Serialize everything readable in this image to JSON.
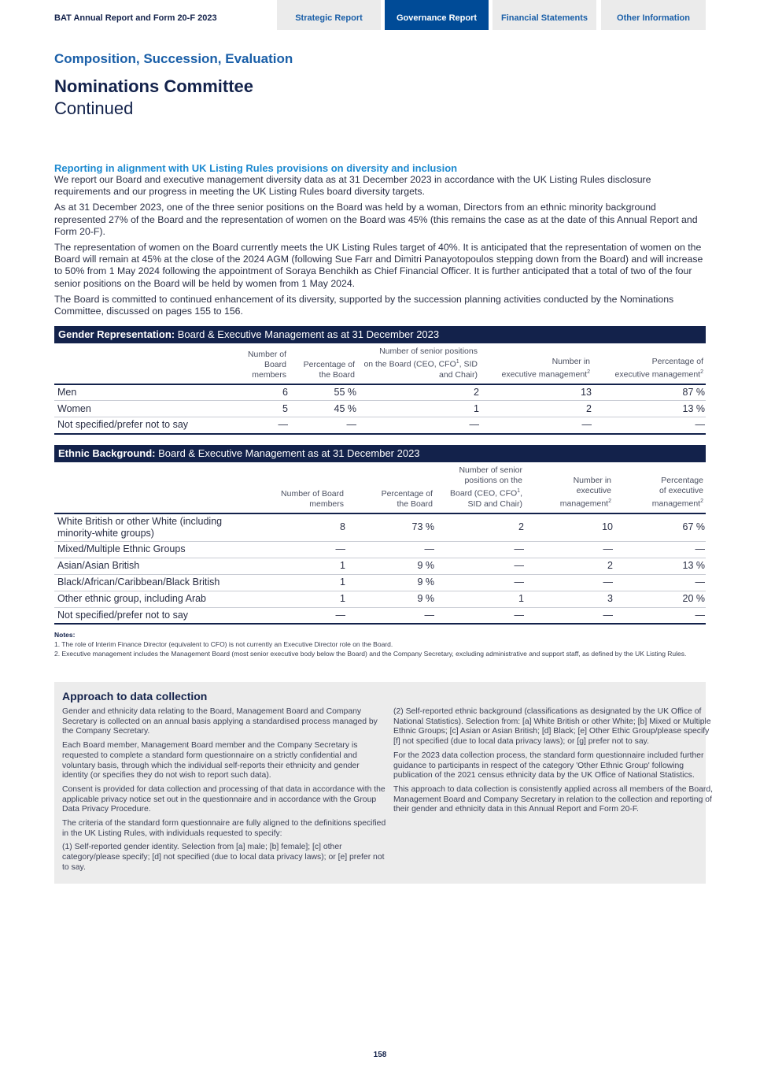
{
  "header": {
    "doc_title": "BAT Annual Report and Form 20-F 2023",
    "tabs": [
      {
        "label": "Strategic Report",
        "active": false
      },
      {
        "label": "Governance Report",
        "active": true
      },
      {
        "label": "Financial Statements",
        "active": false
      },
      {
        "label": "Other Information",
        "active": false
      }
    ]
  },
  "section": {
    "kicker": "Composition, Succession, Evaluation",
    "title": "Nominations Committee",
    "subtitle": "Continued"
  },
  "intro": {
    "heading": "Reporting in alignment with UK Listing Rules provisions on diversity and inclusion",
    "paragraphs": [
      "We report our Board and executive management diversity data as at 31 December 2023 in accordance with the UK Listing Rules disclosure requirements and our progress in meeting the UK Listing Rules board diversity targets.",
      "As at 31 December 2023, one of the three senior positions on the Board was held by a woman, Directors from an ethnic minority background represented 27% of the Board and the representation of women on the Board was 45% (this remains the case as at the date of this Annual Report and Form 20-F).",
      "The representation of women on the Board currently meets the UK Listing Rules target of 40%. It is anticipated that the representation of women on the Board will remain at 45% at the close of the 2024 AGM (following Sue Farr and Dimitri Panayotopoulos stepping down from the Board) and will increase to 50% from 1 May 2024 following the appointment of Soraya Benchikh as Chief Financial Officer. It is further anticipated that a total of two of the four senior positions on the Board will be held by women from 1 May 2024.",
      "The Board is committed to continued enhancement of its diversity, supported by the succession planning activities conducted by the Nominations Committee, discussed on pages 155 to 156."
    ]
  },
  "gender_table": {
    "title_bold": "Gender Representation:",
    "title_rest": " Board & Executive Management as at 31 December 2023",
    "headers": [
      {
        "pre": "Number of Board\nmembers"
      },
      {
        "pre": "Percentage of\nthe Board"
      },
      {
        "pre": "Number of senior positions\non the Board (CEO, CFO",
        "sup": "1",
        "post": ", SID\nand Chair)"
      },
      {
        "pre": "Number in\nexecutive management",
        "sup": "2"
      },
      {
        "pre": "Percentage of\nexecutive management",
        "sup": "2"
      }
    ],
    "rows": [
      [
        "Men",
        "6",
        "55 %",
        "2",
        "13",
        "87 %"
      ],
      [
        "Women",
        "5",
        "45 %",
        "1",
        "2",
        "13 %"
      ],
      [
        "Not specified/prefer not to say",
        "—",
        "—",
        "—",
        "—",
        "—"
      ]
    ]
  },
  "ethnic_table": {
    "title_bold": "Ethnic Background:",
    "title_rest": " Board & Executive Management as at 31 December 2023",
    "headers": [
      {
        "pre": "Number of Board\nmembers"
      },
      {
        "pre": "Percentage of\nthe Board"
      },
      {
        "pre": "Number of senior\npositions on the\nBoard (CEO, CFO",
        "sup": "1",
        "post": ",\nSID and Chair)"
      },
      {
        "pre": "Number in\nexecutive\nmanagement",
        "sup": "2"
      },
      {
        "pre": "Percentage\nof executive\nmanagement",
        "sup": "2"
      }
    ],
    "rows": [
      [
        "White British or other White (including minority-white groups)",
        "8",
        "73 %",
        "2",
        "10",
        "67 %"
      ],
      [
        "Mixed/Multiple Ethnic Groups",
        "—",
        "—",
        "—",
        "—",
        "—"
      ],
      [
        "Asian/Asian British",
        "1",
        "9 %",
        "—",
        "2",
        "13 %"
      ],
      [
        "Black/African/Caribbean/Black British",
        "1",
        "9 %",
        "—",
        "—",
        "—"
      ],
      [
        "Other ethnic group, including Arab",
        "1",
        "9 %",
        "1",
        "3",
        "20 %"
      ],
      [
        "Not specified/prefer not to say",
        "—",
        "—",
        "—",
        "—",
        "—"
      ]
    ]
  },
  "notes": {
    "title": "Notes:",
    "items": [
      "1.  The role of Interim Finance Director (equivalent to CFO) is not currently an Executive Director role on the Board.",
      "2.  Executive management includes the Management Board (most senior executive body below the Board) and the Company Secretary, excluding administrative and support staff, as defined by the UK Listing Rules."
    ]
  },
  "approach": {
    "title": "Approach to data collection",
    "left": [
      "Gender and ethnicity data relating to the Board, Management Board and Company Secretary is collected on an annual basis applying a standardised process managed by the Company Secretary.",
      "Each Board member, Management Board member and the Company Secretary is requested to complete a standard form questionnaire on a strictly confidential and voluntary basis, through which the individual self-reports their ethnicity and gender identity (or specifies they do not wish to report such data).",
      "Consent is provided for data collection and processing of that data in accordance with the applicable privacy notice set out in the questionnaire and in accordance with the Group Data Privacy Procedure.",
      "The criteria of the standard form questionnaire are fully aligned to the definitions specified in the UK Listing Rules, with individuals requested to specify:",
      "(1) Self-reported gender identity. Selection from [a] male; [b] female]; [c] other category/please specify; [d] not specified (due to local data privacy laws); or [e] prefer not to say."
    ],
    "right": [
      "(2) Self-reported ethnic background (classifications as designated by the UK Office of National Statistics). Selection from: [a] White British or other White; [b] Mixed or Multiple Ethnic Groups; [c] Asian or Asian British; [d] Black; [e] Other Ethic Group/please specify [f] not specified (due to local data privacy laws); or [g] prefer not to say.",
      "For the 2023 data collection process, the standard form questionnaire included further guidance to participants in respect of the category 'Other Ethnic Group' following publication of the 2021 census ethnicity data by the UK Office of National Statistics.",
      "This approach to data collection is consistently applied across all members of the Board, Management Board and Company Secretary in relation to the collection and reporting of their gender and ethnicity data in this Annual Report and Form 20-F."
    ]
  },
  "page_number": "158"
}
